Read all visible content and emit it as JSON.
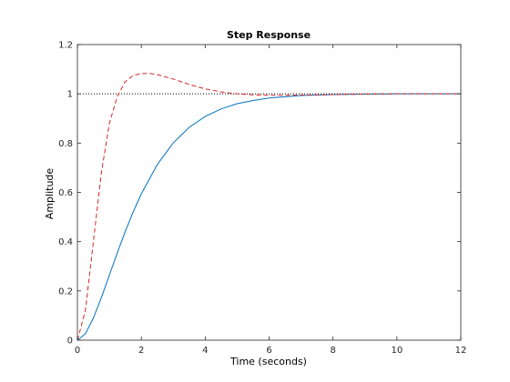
{
  "chart_data": {
    "type": "line",
    "title": "Step Response",
    "xlabel": "Time (seconds)",
    "ylabel": "Amplitude",
    "xlim": [
      0,
      12
    ],
    "ylim": [
      0,
      1.2
    ],
    "xticks": [
      0,
      2,
      4,
      6,
      8,
      10,
      12
    ],
    "yticks": [
      0,
      0.2,
      0.4,
      0.6,
      0.8,
      1,
      1.2
    ],
    "xtick_labels": [
      "0",
      "2",
      "4",
      "6",
      "8",
      "10",
      "12"
    ],
    "ytick_labels": [
      "0",
      "0.2",
      "0.4",
      "0.6",
      "0.8",
      "1",
      "1.2"
    ],
    "grid": false,
    "reference_line": {
      "y": 1,
      "style": "dotted",
      "color": "#000000"
    },
    "series": [
      {
        "color": "#0072BD",
        "style": "solid",
        "x": [
          0,
          0.25,
          0.5,
          0.75,
          1,
          1.25,
          1.5,
          1.75,
          2,
          2.5,
          3,
          3.5,
          4,
          4.5,
          5,
          5.5,
          6,
          7,
          8,
          9,
          10,
          11,
          12
        ],
        "y": [
          0,
          0.026,
          0.09,
          0.173,
          0.264,
          0.355,
          0.442,
          0.522,
          0.594,
          0.713,
          0.801,
          0.864,
          0.908,
          0.939,
          0.96,
          0.973,
          0.983,
          0.993,
          0.997,
          0.999,
          1.0,
          1.0,
          1.0
        ]
      },
      {
        "color": "#D62728",
        "style": "dashed",
        "x": [
          0,
          0.25,
          0.5,
          0.75,
          1,
          1.25,
          1.5,
          1.75,
          2,
          2.25,
          2.5,
          3,
          3.5,
          4,
          4.5,
          5,
          5.5,
          6,
          6.5,
          7,
          8,
          9,
          10,
          11,
          12
        ],
        "y": [
          0,
          0.12,
          0.4,
          0.68,
          0.88,
          0.99,
          1.05,
          1.075,
          1.082,
          1.083,
          1.078,
          1.06,
          1.038,
          1.02,
          1.008,
          1.0,
          0.996,
          0.994,
          0.994,
          0.995,
          0.997,
          0.999,
          1.0,
          1.0,
          1.0
        ]
      }
    ]
  }
}
